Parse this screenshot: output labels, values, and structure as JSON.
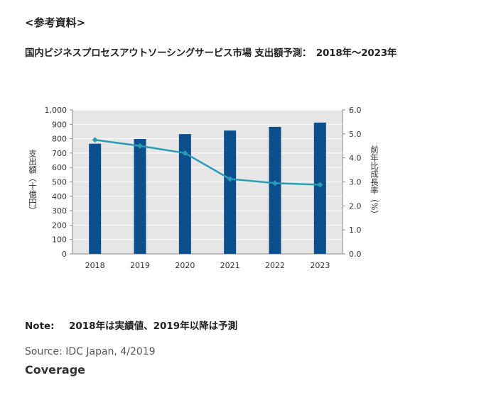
{
  "header": {
    "ref_label": "<参考資料>",
    "title": "国内ビジネスプロセスアウトソーシングサービス市場 支出額予測：　2018年～2023年"
  },
  "chart_data": {
    "type": "bar+line",
    "categories": [
      "2018",
      "2019",
      "2020",
      "2021",
      "2022",
      "2023"
    ],
    "series": [
      {
        "name": "支出額",
        "type": "bar",
        "axis": "left",
        "color": "#0b4f8f",
        "values": [
          765,
          798,
          832,
          857,
          882,
          912
        ]
      },
      {
        "name": "前年比成長率",
        "type": "line",
        "axis": "right",
        "color": "#2a9bb5",
        "values": [
          4.75,
          4.5,
          4.2,
          3.12,
          2.95,
          2.88
        ]
      }
    ],
    "left_axis": {
      "label": "支出額（十億円）",
      "min": 0,
      "max": 1000,
      "ticks": [
        0,
        100,
        200,
        300,
        400,
        500,
        600,
        700,
        800,
        900,
        1000
      ],
      "tick_labels": [
        "0",
        "100",
        "200",
        "300",
        "400",
        "500",
        "600",
        "700",
        "800",
        "900",
        "1,000"
      ]
    },
    "right_axis": {
      "label": "前年比成長率（%）",
      "min": 0,
      "max": 6,
      "ticks": [
        0,
        1,
        2,
        3,
        4,
        5,
        6
      ],
      "tick_labels": [
        "0.0",
        "1.0",
        "2.0",
        "3.0",
        "4.0",
        "5.0",
        "6.0"
      ]
    },
    "grid": true,
    "plot_background": "#e6e6e6",
    "grid_color": "#ffffff"
  },
  "footer": {
    "note_label": "Note:",
    "note_text": "2018年は実績値、2019年以降は予測",
    "source": "Source: IDC Japan, 4/2019",
    "coverage": "Coverage"
  }
}
